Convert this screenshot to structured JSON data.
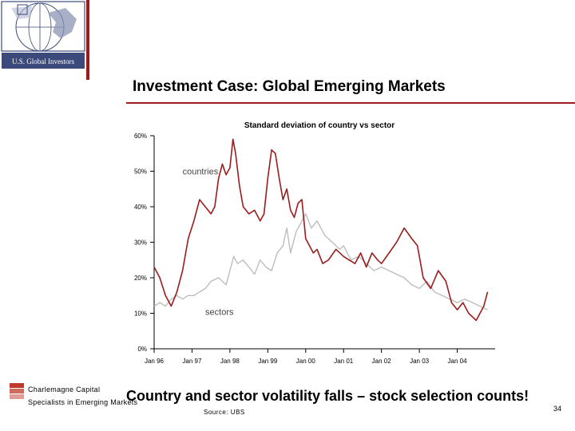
{
  "header": {
    "logo_text": "U.S. Global Investors",
    "title": "Investment Case: Global Emerging Markets"
  },
  "chart_data": {
    "type": "line",
    "title": "Standard deviation of country vs sector",
    "xlabel": "",
    "ylabel": "",
    "ylim": [
      0,
      60
    ],
    "yticks": [
      "0%",
      "10%",
      "20%",
      "30%",
      "40%",
      "50%",
      "60%"
    ],
    "xticks": [
      "Jan 96",
      "Jan 97",
      "Jan 98",
      "Jan 99",
      "Jan 00",
      "Jan 01",
      "Jan 02",
      "Jan 03",
      "Jan 04"
    ],
    "x_unit": "year",
    "series": [
      {
        "name": "countries",
        "color": "#9b1c1c",
        "x": [
          1996.0,
          1996.15,
          1996.3,
          1996.45,
          1996.6,
          1996.75,
          1996.9,
          1997.05,
          1997.2,
          1997.35,
          1997.5,
          1997.6,
          1997.7,
          1997.8,
          1997.9,
          1998.0,
          1998.08,
          1998.15,
          1998.25,
          1998.35,
          1998.5,
          1998.65,
          1998.8,
          1998.9,
          1999.0,
          1999.1,
          1999.2,
          1999.3,
          1999.4,
          1999.5,
          1999.6,
          1999.7,
          1999.8,
          1999.9,
          2000.0,
          2000.1,
          2000.2,
          2000.3,
          2000.45,
          2000.6,
          2000.8,
          2001.0,
          2001.15,
          2001.3,
          2001.45,
          2001.6,
          2001.75,
          2001.9,
          2002.0,
          2002.2,
          2002.4,
          2002.6,
          2002.8,
          2002.95,
          2003.1,
          2003.3,
          2003.5,
          2003.7,
          2003.85,
          2004.0,
          2004.15,
          2004.3,
          2004.5,
          2004.7,
          2004.8
        ],
        "values": [
          23,
          20,
          15,
          12,
          16,
          22,
          31,
          36,
          42,
          40,
          38,
          40,
          48,
          52,
          49,
          51,
          59,
          55,
          46,
          40,
          38,
          39,
          36,
          38,
          48,
          56,
          55,
          48,
          42,
          45,
          39,
          37,
          41,
          42,
          31,
          29,
          27,
          28,
          24,
          25,
          28,
          26,
          25,
          24,
          27,
          23,
          27,
          25,
          24,
          27,
          30,
          34,
          31,
          29,
          20,
          17,
          22,
          19,
          13,
          11,
          13,
          10,
          8,
          12,
          16
        ]
      },
      {
        "name": "sectors",
        "color": "#bdbdbd",
        "x": [
          1996.0,
          1996.15,
          1996.3,
          1996.45,
          1996.6,
          1996.75,
          1996.9,
          1997.05,
          1997.2,
          1997.35,
          1997.5,
          1997.7,
          1997.9,
          1998.0,
          1998.1,
          1998.2,
          1998.35,
          1998.5,
          1998.65,
          1998.8,
          1998.95,
          1999.1,
          1999.25,
          1999.4,
          1999.5,
          1999.6,
          1999.75,
          1999.85,
          2000.0,
          2000.15,
          2000.3,
          2000.5,
          2000.7,
          2000.9,
          2001.0,
          2001.2,
          2001.4,
          2001.6,
          2001.8,
          2002.0,
          2002.2,
          2002.4,
          2002.6,
          2002.8,
          2003.0,
          2003.2,
          2003.4,
          2003.6,
          2003.8,
          2004.0,
          2004.2,
          2004.4,
          2004.6,
          2004.8
        ],
        "values": [
          12,
          13,
          12,
          14,
          15,
          14,
          15,
          15,
          16,
          17,
          19,
          20,
          18,
          22,
          26,
          24,
          25,
          23,
          21,
          25,
          23,
          22,
          27,
          29,
          34,
          27,
          33,
          35,
          38,
          34,
          36,
          32,
          30,
          28,
          29,
          25,
          26,
          24,
          22,
          23,
          22,
          21,
          20,
          18,
          17,
          19,
          16,
          15,
          14,
          13,
          14,
          13,
          12,
          11
        ]
      }
    ],
    "annotations": [
      {
        "text": "countries",
        "x": 1996.75,
        "y": 50
      },
      {
        "text": "sectors",
        "x": 1997.35,
        "y": 10.5
      }
    ],
    "grid": false,
    "legend": "none"
  },
  "footer": {
    "company": "Charlemagne Capital",
    "tagline": "Specialists in Emerging Markets",
    "headline": "Country and sector volatility falls – stock selection counts!",
    "source": "Source: UBS",
    "page_number": "34"
  }
}
